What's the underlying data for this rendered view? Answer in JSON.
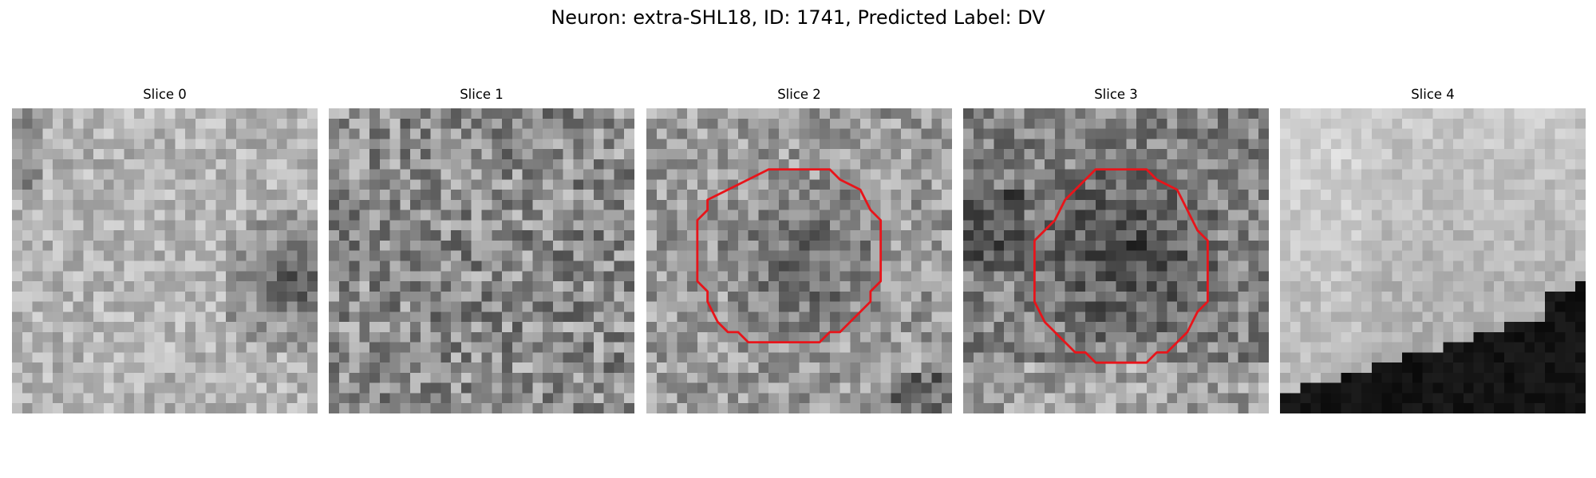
{
  "figure": {
    "title": "Neuron: extra-SHL18, ID: 1741, Predicted Label: DV"
  },
  "panels": [
    {
      "title": "Slice 0",
      "outline": false
    },
    {
      "title": "Slice 1",
      "outline": false
    },
    {
      "title": "Slice 2",
      "outline": true
    },
    {
      "title": "Slice 3",
      "outline": true
    },
    {
      "title": "Slice 4",
      "outline": false
    }
  ],
  "colors": {
    "outline": "#e8141a",
    "background": "#ffffff",
    "colormap": "grayscale"
  }
}
